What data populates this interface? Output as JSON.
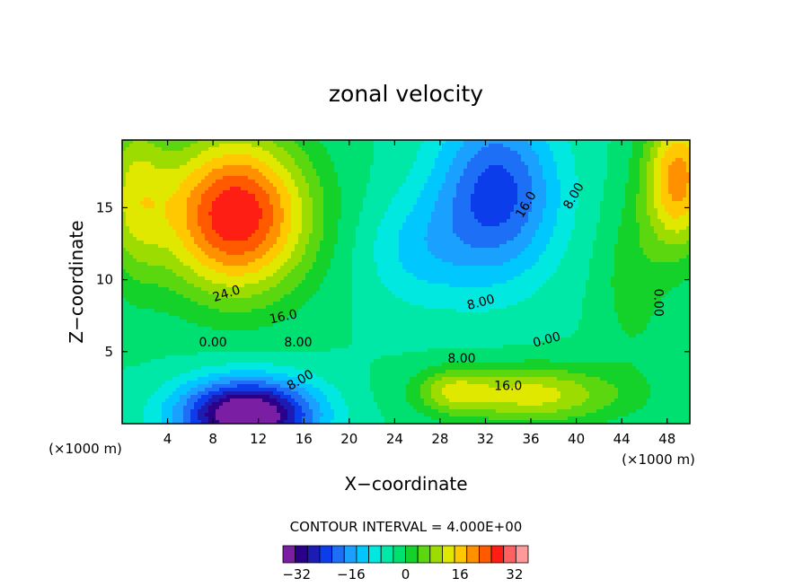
{
  "chart_data": {
    "type": "contour",
    "title": "zonal velocity",
    "xlabel": "X−coordinate",
    "ylabel": "Z−coordinate",
    "x_unit_left": "(×1000 m)",
    "x_unit_right": "(×1000 m)",
    "xlim": [
      0,
      50
    ],
    "ylim": [
      0,
      19.7
    ],
    "x_ticks": [
      4,
      8,
      12,
      16,
      20,
      24,
      28,
      32,
      36,
      40,
      44,
      48
    ],
    "y_ticks": [
      5,
      10,
      15
    ],
    "contour_interval_text": "CONTOUR INTERVAL = 4.000E+00",
    "contour_interval": 4,
    "field_range": [
      -36,
      36
    ],
    "colorbar": {
      "ticks": [
        -32,
        -16,
        0,
        16,
        32
      ],
      "tick_labels": [
        "−32",
        "−16",
        "0",
        "16",
        "32"
      ],
      "colors": [
        "#7a1fa3",
        "#2a008a",
        "#1c1cb4",
        "#0b3dea",
        "#1d6ff5",
        "#1aa0ff",
        "#00c8ff",
        "#00e8e0",
        "#00e8a8",
        "#00e070",
        "#14d22a",
        "#5ad70e",
        "#9cdc00",
        "#e0e800",
        "#ffc800",
        "#ff9000",
        "#ff5a00",
        "#ff1e14",
        "#ff6060",
        "#ff9a9a"
      ]
    },
    "centers": [
      {
        "x": 10,
        "z": 14.5,
        "value": 36,
        "sx": 6.5,
        "sz": 5.5
      },
      {
        "x": 11,
        "z": 0.6,
        "value": -40,
        "sx": 6,
        "sz": 2.5
      },
      {
        "x": 33,
        "z": 16,
        "value": -22,
        "sx": 5.5,
        "sz": 6
      },
      {
        "x": 26,
        "z": 12,
        "value": -8,
        "sx": 5,
        "sz": 4
      },
      {
        "x": 36,
        "z": 2,
        "value": 18,
        "sx": 8,
        "sz": 2
      },
      {
        "x": 29,
        "z": 2.3,
        "value": 10,
        "sx": 3,
        "sz": 1.5
      },
      {
        "x": 49,
        "z": 17,
        "value": 26,
        "sx": 3,
        "sz": 5
      },
      {
        "x": 1,
        "z": 16,
        "value": 14,
        "sx": 3,
        "sz": 6
      },
      {
        "x": 45,
        "z": 10,
        "value": 6,
        "sx": 3,
        "sz": 6
      }
    ],
    "contour_labels": [
      {
        "x": 9.2,
        "z": 9.0,
        "text": "24.0",
        "rot": 18
      },
      {
        "x": 14.2,
        "z": 7.4,
        "text": "16.0",
        "rot": 12
      },
      {
        "x": 8.0,
        "z": 5.6,
        "text": "0.00",
        "rot": 0
      },
      {
        "x": 15.5,
        "z": 5.6,
        "text": "8.00",
        "rot": 0
      },
      {
        "x": 15.7,
        "z": 3.0,
        "text": "8.00",
        "rot": 30
      },
      {
        "x": 31.6,
        "z": 8.4,
        "text": "8.00",
        "rot": 15
      },
      {
        "x": 37.4,
        "z": 5.8,
        "text": "0.00",
        "rot": 15
      },
      {
        "x": 29.9,
        "z": 4.5,
        "text": "8.00",
        "rot": 0
      },
      {
        "x": 34.0,
        "z": 2.6,
        "text": "16.0",
        "rot": 0
      },
      {
        "x": 35.6,
        "z": 15.2,
        "text": "16.0",
        "rot": 60
      },
      {
        "x": 39.8,
        "z": 15.8,
        "text": "8.00",
        "rot": 60
      },
      {
        "x": 47.2,
        "z": 8.4,
        "text": "0.00",
        "rot": -90
      }
    ]
  }
}
